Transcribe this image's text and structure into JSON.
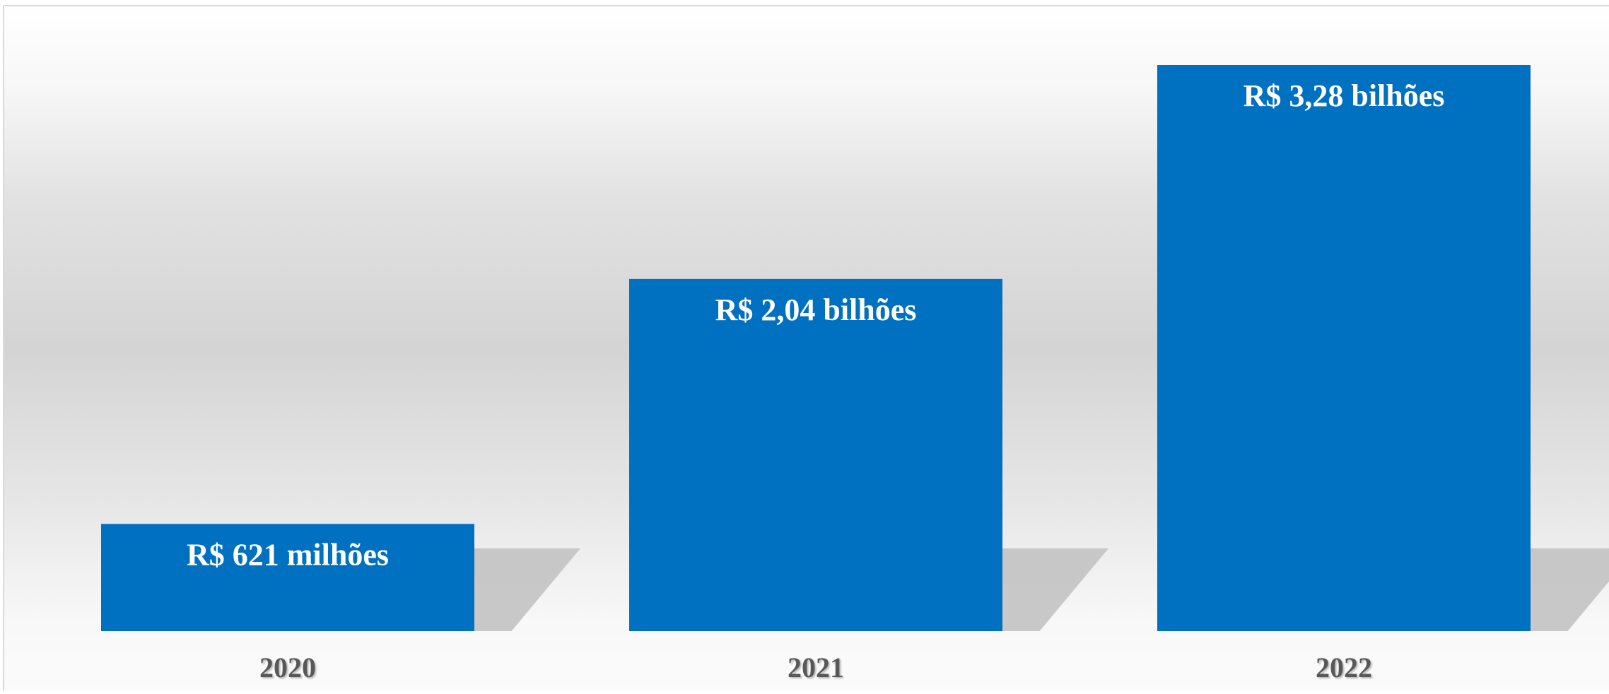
{
  "chart_data": {
    "type": "bar",
    "categories": [
      "2020",
      "2021",
      "2022"
    ],
    "values": [
      0.621,
      2.04,
      3.28
    ],
    "data_labels": [
      "R$ 621 milhões",
      "R$ 2,04 bilhões",
      "R$ 3,28 bilhões"
    ],
    "title": "",
    "xlabel": "",
    "ylabel": "",
    "ylim": [
      0,
      3.28
    ],
    "grid": false,
    "legend": "none",
    "colors": {
      "bar": "#0070C0",
      "data_label": "#FFFFFF",
      "category_label": "#595959",
      "shadow": "#BFBFBF",
      "border": "#D9D9D9"
    }
  }
}
